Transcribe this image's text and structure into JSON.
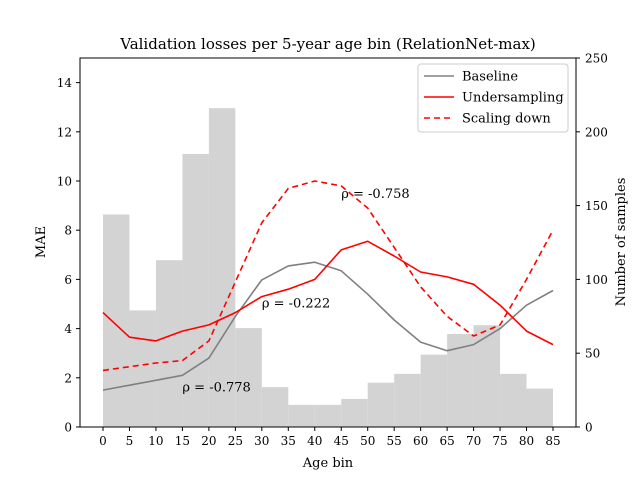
{
  "chart_data": {
    "type": "line",
    "title": "Validation losses per 5-year age bin (RelationNet-max)",
    "xlabel": "Age bin",
    "ylabel": "MAE",
    "y2label": "Number of samples",
    "x": [
      0,
      5,
      10,
      15,
      20,
      25,
      30,
      35,
      40,
      45,
      50,
      55,
      60,
      65,
      70,
      75,
      80,
      85
    ],
    "ylim": [
      0,
      15
    ],
    "y2lim": [
      0,
      250
    ],
    "yticks": [
      0,
      2,
      4,
      6,
      8,
      10,
      12,
      14
    ],
    "y2ticks": [
      0,
      50,
      100,
      150,
      200,
      250
    ],
    "legend_position": "top-right",
    "grid": false,
    "histogram": {
      "axis": "right",
      "color": "#d3d3d3",
      "counts": [
        144,
        79,
        113,
        185,
        216,
        67,
        27,
        15,
        15,
        19,
        30,
        36,
        49,
        63,
        69,
        36,
        26,
        0
      ]
    },
    "series": [
      {
        "name": "Baseline",
        "color": "#808080",
        "style": "solid",
        "values": [
          1.5,
          1.7,
          1.9,
          2.1,
          2.8,
          4.5,
          5.98,
          6.55,
          6.7,
          6.35,
          5.4,
          4.35,
          3.45,
          3.1,
          3.35,
          4.0,
          4.95,
          5.55
        ]
      },
      {
        "name": "Undersampling",
        "color": "#ff0000",
        "style": "solid",
        "values": [
          4.65,
          3.65,
          3.5,
          3.9,
          4.15,
          4.65,
          5.3,
          5.6,
          6.0,
          7.2,
          7.55,
          6.95,
          6.3,
          6.1,
          5.8,
          4.95,
          3.9,
          3.35
        ]
      },
      {
        "name": "Scaling down",
        "color": "#ff0000",
        "style": "dashed",
        "values": [
          2.3,
          2.45,
          2.6,
          2.7,
          3.5,
          5.9,
          8.3,
          9.7,
          10.0,
          9.8,
          8.9,
          7.3,
          5.7,
          4.5,
          3.7,
          4.15,
          6.0,
          8.0
        ]
      }
    ],
    "annotations": [
      {
        "text": "ρ = -0.778",
        "color": "#808080",
        "x": 15,
        "y": 1.45
      },
      {
        "text": "ρ = -0.222",
        "color": "#ff0000",
        "x": 30,
        "y": 4.85
      },
      {
        "text": "ρ = -0.758",
        "color": "#ff0000",
        "x": 45,
        "y": 9.3
      }
    ]
  }
}
